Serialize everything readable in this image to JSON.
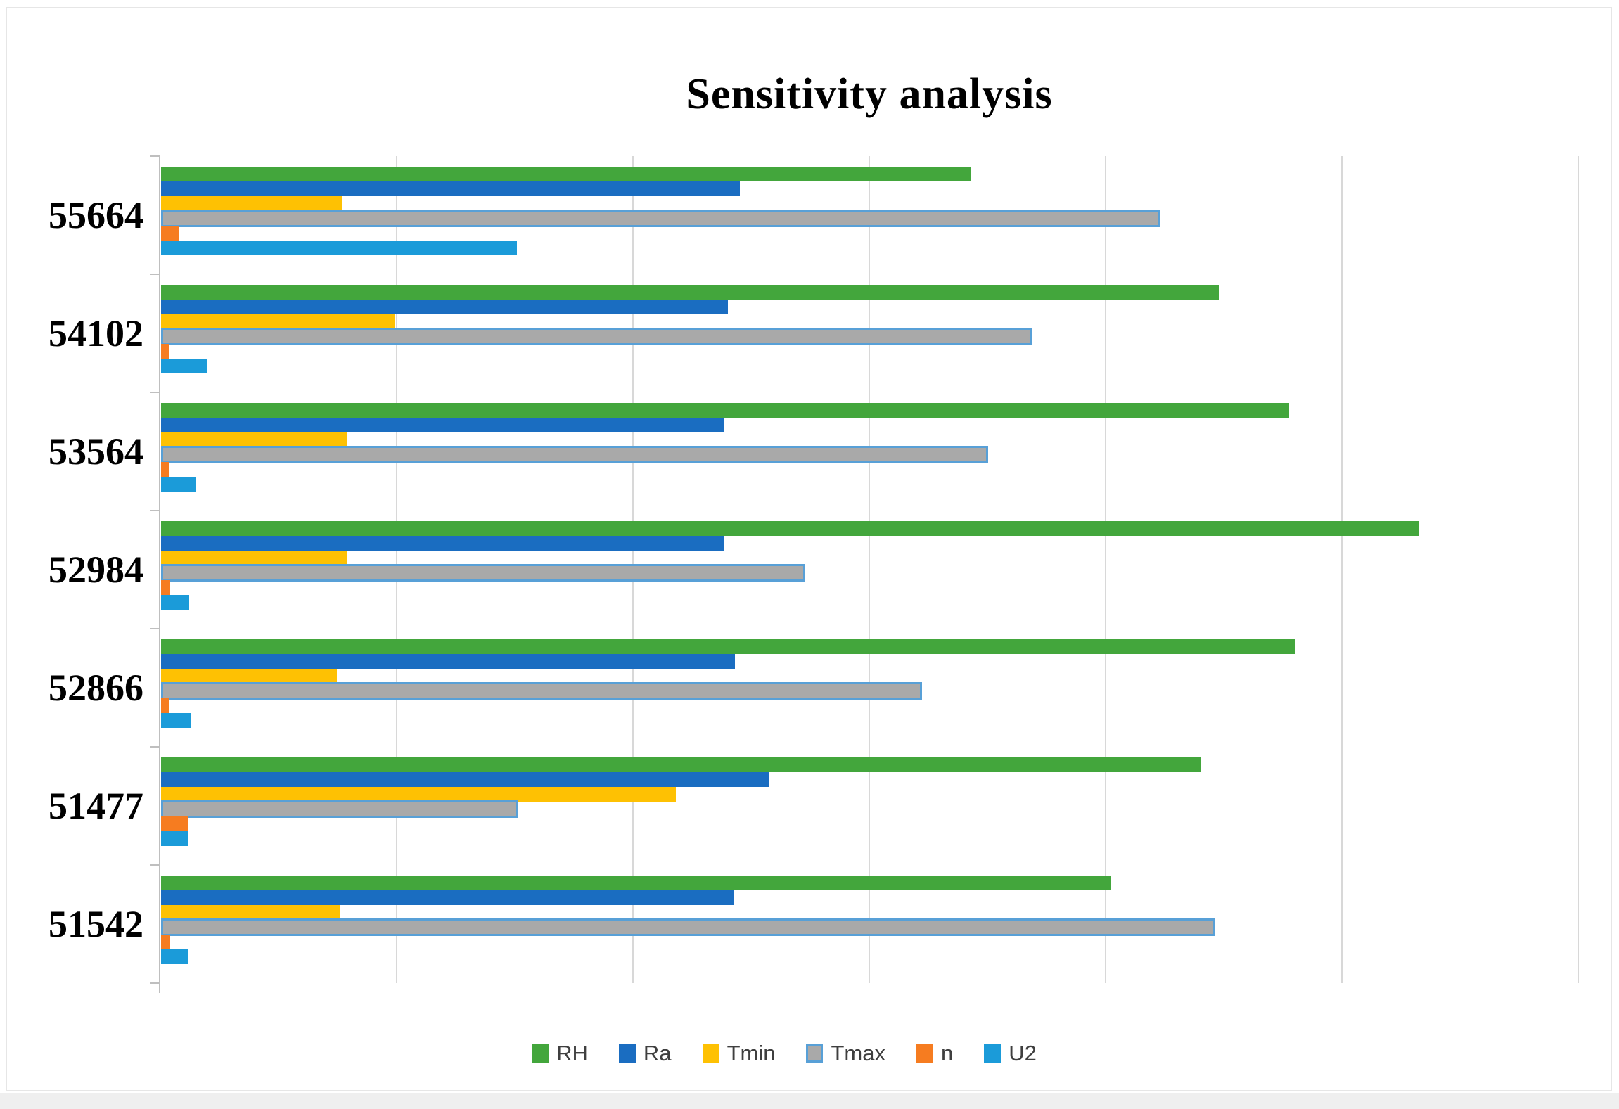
{
  "title": "Sensitivity analysis",
  "legend": [
    "RH",
    "Ra",
    "Tmin",
    "Tmax",
    "n",
    "U2"
  ],
  "colors": {
    "rh_green": "#43a63c",
    "ra_blue": "#1a6dc1",
    "tmin_yellow": "#fec103",
    "tmax_gray": "#a9a9a9",
    "tmax_border_blue": "#58a0d7",
    "n_orange": "#f67c20",
    "u2_lightblue": "#1b9bd9",
    "gridline": "#d8d8d8",
    "axis": "#bfbfbf"
  },
  "chart_data": {
    "type": "bar",
    "orientation": "horizontal",
    "title": "Sensitivity analysis",
    "xlabel": "",
    "ylabel": "",
    "categories": [
      "55664",
      "54102",
      "53564",
      "52984",
      "52866",
      "51477",
      "51542"
    ],
    "series": [
      {
        "name": "RH",
        "color": "#43a63c",
        "values": [
          0.685,
          0.895,
          0.955,
          1.064,
          0.96,
          0.88,
          0.804
        ]
      },
      {
        "name": "Ra",
        "color": "#1a6dc1",
        "values": [
          0.49,
          0.48,
          0.477,
          0.477,
          0.486,
          0.515,
          0.485
        ]
      },
      {
        "name": "Tmin",
        "color": "#fec103",
        "values": [
          0.153,
          0.198,
          0.157,
          0.157,
          0.149,
          0.436,
          0.152
        ]
      },
      {
        "name": "Tmax",
        "color": "#a9a9a9",
        "border": "#58a0d7",
        "values": [
          0.845,
          0.737,
          0.7,
          0.545,
          0.644,
          0.302,
          0.892
        ]
      },
      {
        "name": "n",
        "color": "#f67c20",
        "values": [
          0.015,
          0.007,
          0.007,
          0.008,
          0.007,
          0.023,
          0.008
        ]
      },
      {
        "name": "U2",
        "color": "#1b9bd9",
        "values": [
          0.301,
          0.039,
          0.03,
          0.024,
          0.025,
          0.023,
          0.023
        ]
      }
    ],
    "xlim": [
      0,
      1.2
    ],
    "gridline_interval": 0.2,
    "x_tick_labels_visible": false,
    "grid": "vertical-only",
    "legend_position": "bottom"
  }
}
